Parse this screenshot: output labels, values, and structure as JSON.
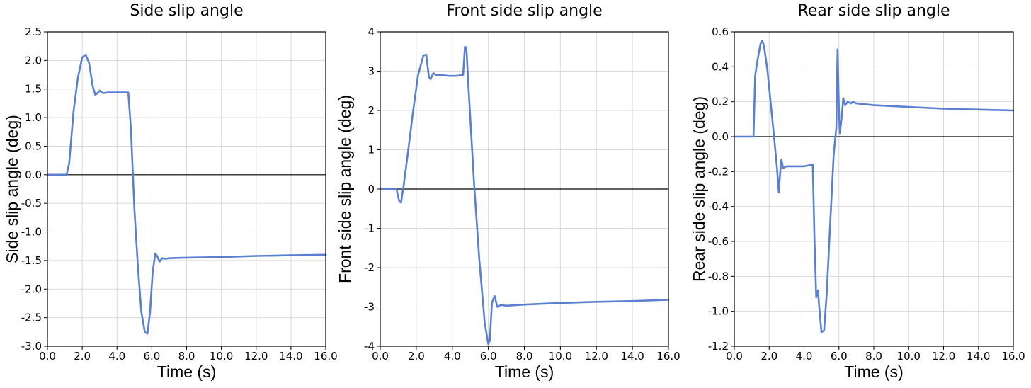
{
  "style": {
    "line_color": "#5b7fd1",
    "grid_color": "#d9d9d9",
    "zero_line_color": "#000000"
  },
  "chart_data": [
    {
      "type": "line",
      "title": "Side slip angle",
      "xlabel": "Time (s)",
      "ylabel": "Side slip angle (deg)",
      "xlim": [
        0,
        16
      ],
      "ylim": [
        -3.0,
        2.5
      ],
      "xticks": [
        0,
        2,
        4,
        6,
        8,
        10,
        12,
        14,
        16
      ],
      "xtick_labels": [
        "0.0",
        "2.0",
        "4.0",
        "6.0",
        "8.0",
        "10.0",
        "12.0",
        "14.0",
        "16.0"
      ],
      "yticks": [
        -3.0,
        -2.5,
        -2.0,
        -1.5,
        -1.0,
        -0.5,
        0.0,
        0.5,
        1.0,
        1.5,
        2.0,
        2.5
      ],
      "ytick_labels": [
        "-3.0",
        "-2.5",
        "-2.0",
        "-1.5",
        "-1.0",
        "-0.5",
        "0.0",
        "0.5",
        "1.0",
        "1.5",
        "2.0",
        "2.5"
      ],
      "grid": true,
      "zero_line": true,
      "series": [
        {
          "x": [
            0,
            1.1,
            1.25,
            1.5,
            1.75,
            2.0,
            2.2,
            2.4,
            2.6,
            2.75,
            2.85,
            3.0,
            3.2,
            3.5,
            4.0,
            4.5,
            4.65,
            4.8,
            5.0,
            5.2,
            5.4,
            5.6,
            5.75,
            5.9,
            6.05,
            6.2,
            6.3,
            6.45,
            6.6,
            6.8,
            7.0,
            8.0,
            10.0,
            12.0,
            14.0,
            16.0
          ],
          "y": [
            0,
            0,
            0.2,
            1.1,
            1.7,
            2.05,
            2.1,
            1.95,
            1.55,
            1.4,
            1.42,
            1.47,
            1.43,
            1.44,
            1.44,
            1.44,
            1.44,
            0.8,
            -0.6,
            -1.6,
            -2.4,
            -2.75,
            -2.78,
            -2.4,
            -1.7,
            -1.38,
            -1.42,
            -1.52,
            -1.46,
            -1.47,
            -1.46,
            -1.45,
            -1.44,
            -1.42,
            -1.41,
            -1.4
          ]
        }
      ]
    },
    {
      "type": "line",
      "title": "Front side slip angle",
      "xlabel": "Time (s)",
      "ylabel": "Front side slip angle (deg)",
      "xlim": [
        0,
        16
      ],
      "ylim": [
        -4,
        4
      ],
      "xticks": [
        0,
        2,
        4,
        6,
        8,
        10,
        12,
        14,
        16
      ],
      "xtick_labels": [
        "0.0",
        "2.0",
        "4.0",
        "6.0",
        "8.0",
        "10.0",
        "12.0",
        "14.0",
        "16.0"
      ],
      "yticks": [
        -4,
        -3,
        -2,
        -1,
        0,
        1,
        2,
        3,
        4
      ],
      "ytick_labels": [
        "-4",
        "-3",
        "-2",
        "-1",
        "0",
        "1",
        "2",
        "3",
        "4"
      ],
      "grid": true,
      "zero_line": true,
      "series": [
        {
          "x": [
            0,
            0.5,
            0.9,
            1.05,
            1.15,
            1.3,
            1.5,
            1.8,
            2.1,
            2.4,
            2.55,
            2.7,
            2.8,
            2.95,
            3.1,
            3.4,
            3.8,
            4.2,
            4.6,
            4.7,
            4.78,
            4.9,
            5.2,
            5.5,
            5.8,
            6.0,
            6.08,
            6.2,
            6.35,
            6.5,
            6.7,
            7.0,
            8.0,
            10.0,
            12.0,
            14.0,
            16.0
          ],
          "y": [
            0,
            0,
            0,
            -0.3,
            -0.35,
            0.1,
            0.8,
            1.9,
            2.9,
            3.4,
            3.42,
            2.85,
            2.8,
            2.95,
            2.9,
            2.9,
            2.88,
            2.88,
            2.9,
            3.62,
            3.6,
            2.6,
            0.2,
            -1.8,
            -3.4,
            -3.95,
            -3.85,
            -2.9,
            -2.72,
            -3.0,
            -2.95,
            -2.97,
            -2.94,
            -2.9,
            -2.87,
            -2.85,
            -2.82
          ]
        }
      ]
    },
    {
      "type": "line",
      "title": "Rear side slip angle",
      "xlabel": "Time (s)",
      "ylabel": "Rear side slip angle (deg)",
      "xlim": [
        0,
        16
      ],
      "ylim": [
        -1.2,
        0.6
      ],
      "xticks": [
        0,
        2,
        4,
        6,
        8,
        10,
        12,
        14,
        16
      ],
      "xtick_labels": [
        "0.0",
        "2.0",
        "4.0",
        "6.0",
        "8.0",
        "10.0",
        "12.0",
        "14.0",
        "16.0"
      ],
      "yticks": [
        -1.2,
        -1.0,
        -0.8,
        -0.6,
        -0.4,
        -0.2,
        0.0,
        0.2,
        0.4,
        0.6
      ],
      "ytick_labels": [
        "-1.2",
        "-1.0",
        "-0.8",
        "-0.6",
        "-0.4",
        "-0.2",
        "0.0",
        "0.2",
        "0.4",
        "0.6"
      ],
      "grid": true,
      "zero_line": true,
      "series": [
        {
          "x": [
            0,
            1.1,
            1.2,
            1.3,
            1.5,
            1.6,
            1.7,
            1.9,
            2.1,
            2.3,
            2.45,
            2.55,
            2.62,
            2.7,
            2.8,
            3.0,
            3.5,
            4.0,
            4.5,
            4.6,
            4.7,
            4.75,
            4.8,
            4.85,
            5.0,
            5.15,
            5.3,
            5.5,
            5.7,
            5.85,
            5.92,
            6.0,
            6.05,
            6.15,
            6.25,
            6.35,
            6.5,
            6.7,
            6.8,
            7.0,
            8.0,
            10.0,
            12.0,
            14.0,
            16.0
          ],
          "y": [
            0,
            0,
            0.35,
            0.42,
            0.53,
            0.55,
            0.52,
            0.38,
            0.18,
            -0.02,
            -0.18,
            -0.32,
            -0.22,
            -0.13,
            -0.18,
            -0.17,
            -0.17,
            -0.17,
            -0.16,
            -0.6,
            -0.92,
            -0.9,
            -0.88,
            -0.95,
            -1.12,
            -1.11,
            -0.9,
            -0.5,
            -0.1,
            0.05,
            0.5,
            0.15,
            0.02,
            0.1,
            0.22,
            0.18,
            0.2,
            0.19,
            0.2,
            0.19,
            0.18,
            0.17,
            0.16,
            0.155,
            0.15
          ]
        }
      ]
    }
  ]
}
